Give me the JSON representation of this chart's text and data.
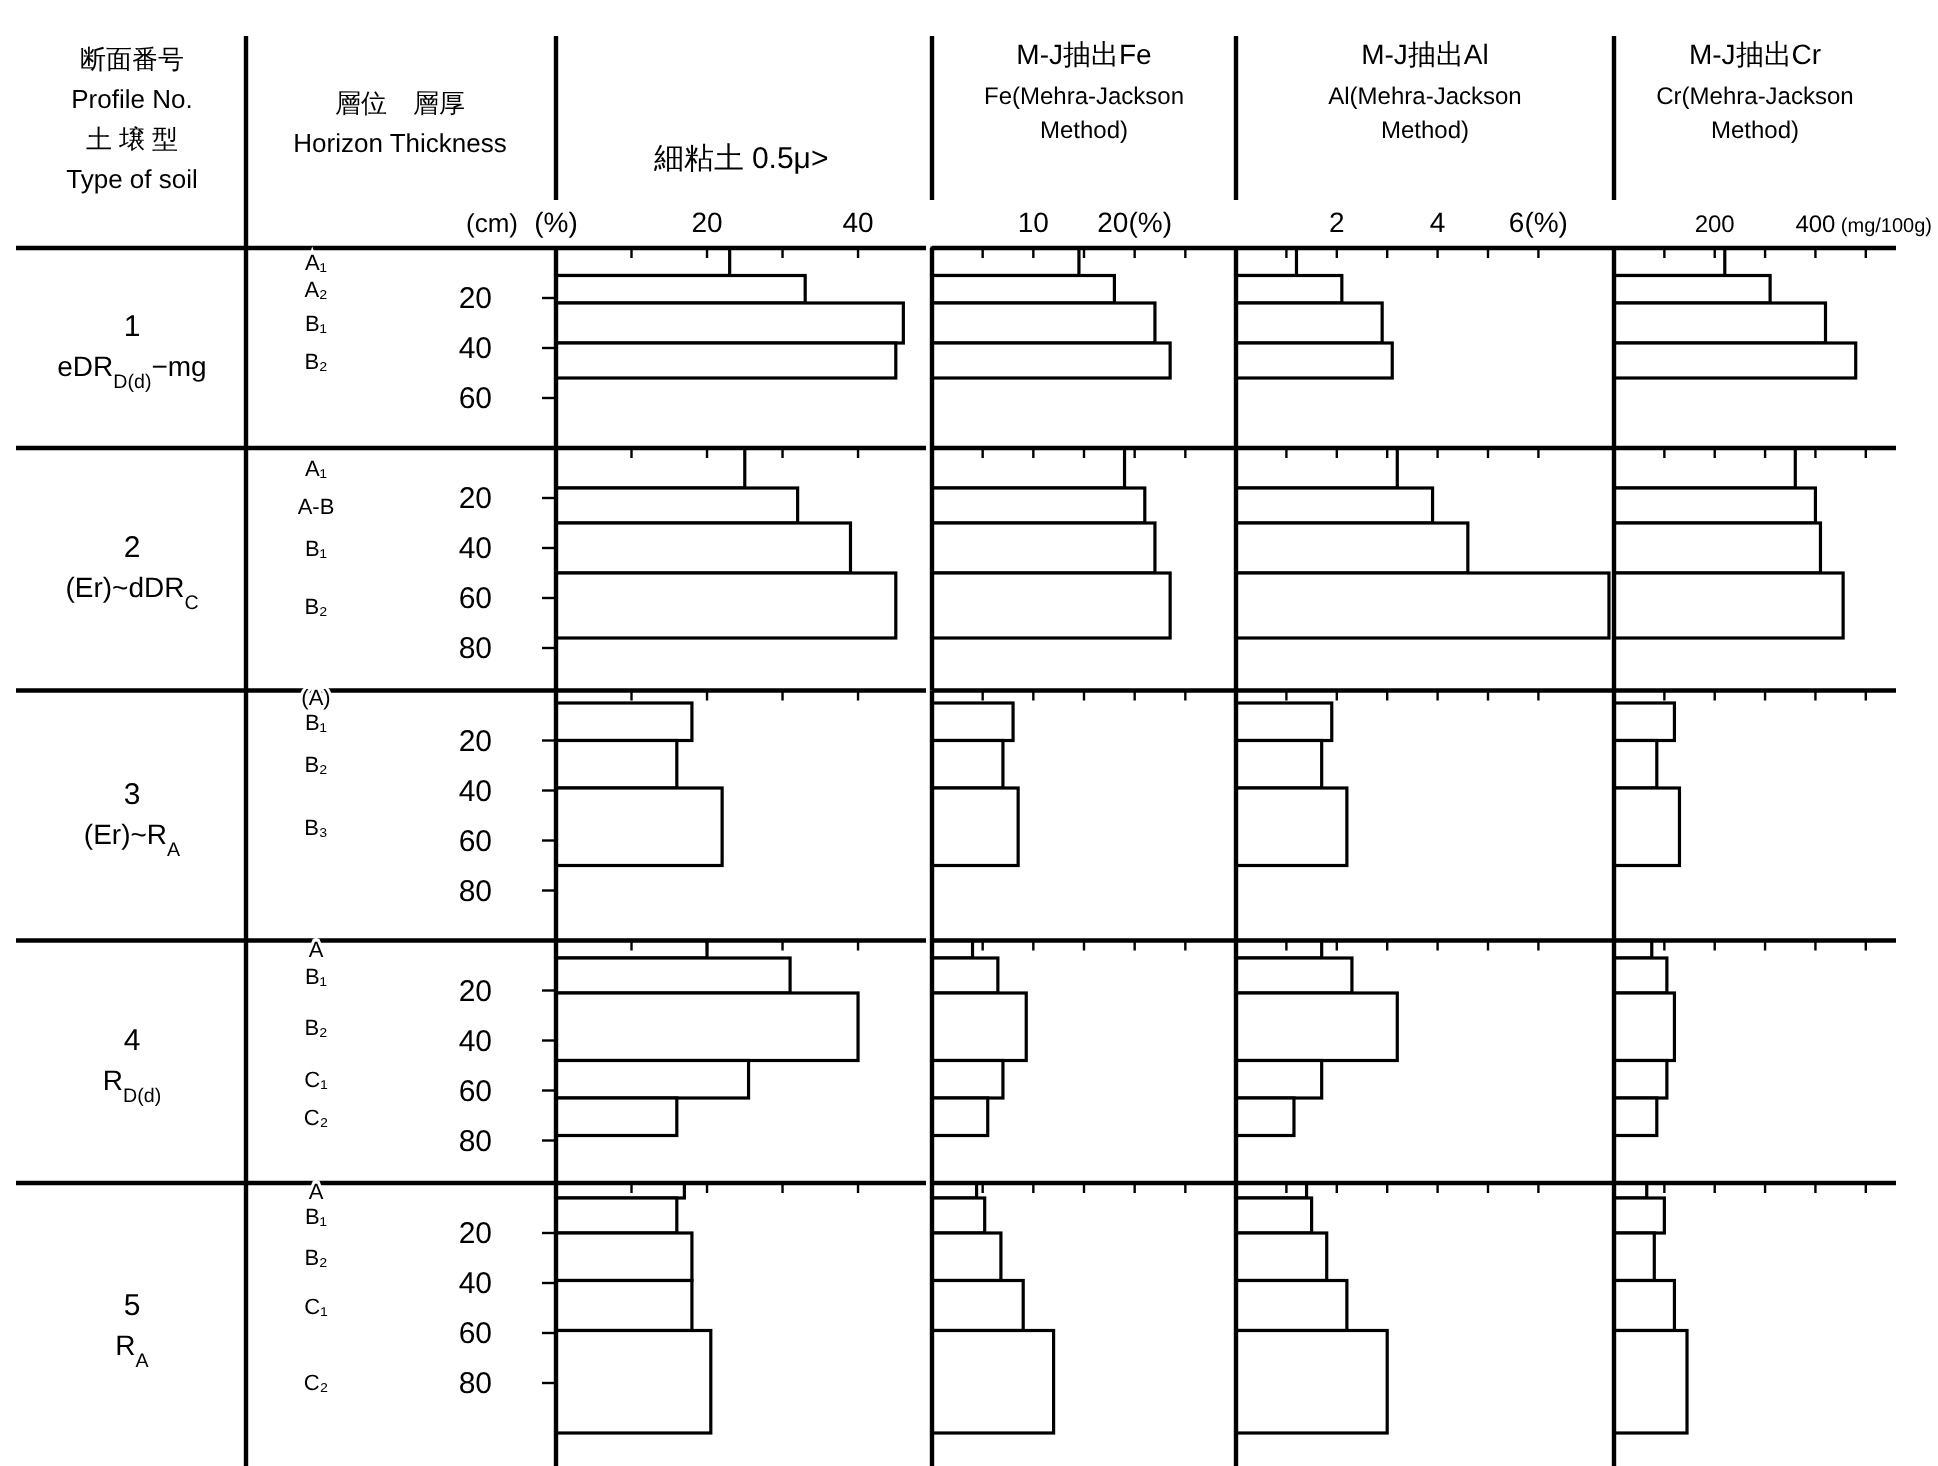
{
  "chart_data": [
    {
      "type": "histogram",
      "orientation": "horizontal",
      "xlabel": "細粘土 0.5μ>",
      "ylabel": "(cm)",
      "annotations": [
        "断面番号",
        "Profile No.",
        "土 壌 型",
        "Type of soil",
        "層位　層厚",
        "Horizon Thickness",
        "1",
        "eDR$_{D(d)}$−mg",
        "A₁",
        "A₂",
        "B₁",
        "B₂"
      ],
      "bins": [
        0,
        11,
        22,
        38,
        52
      ],
      "values": [
        23,
        33,
        46,
        45
      ],
      "color": "#000000",
      "xlim": [
        0,
        49
      ],
      "xticks": [
        {
          "value": 0,
          "label": "(%)"
        },
        {
          "value": 10,
          "label": null
        },
        20,
        {
          "value": 30,
          "label": null
        },
        40
      ],
      "ylim": [
        80,
        0
      ],
      "yticks": [
        20,
        40,
        60
      ]
    },
    {
      "type": "histogram",
      "orientation": "horizontal",
      "title": "M-J抽出Fe",
      "subtitle": "Fe(Mehra-Jackson Method)",
      "bins": [
        0,
        11,
        22,
        38,
        52
      ],
      "values": [
        14.5,
        18,
        22,
        23.5
      ],
      "color": "#000000",
      "xlim": [
        0,
        30
      ],
      "xticks": [
        {
          "value": 5,
          "label": null
        },
        10,
        {
          "value": 15,
          "label": null
        },
        {
          "value": 20,
          "label": "20(%)"
        },
        {
          "value": 25,
          "label": null
        }
      ],
      "ylim": [
        80,
        0
      ],
      "tick_labels": "x"
    },
    {
      "type": "histogram",
      "orientation": "horizontal",
      "title": "M-J抽出Al",
      "subtitle": "Al(Mehra-Jackson Method)",
      "bins": [
        0,
        11,
        22,
        38,
        52
      ],
      "values": [
        1.2,
        2.1,
        2.9,
        3.1
      ],
      "color": "#000000",
      "xlim": [
        0,
        7.5
      ],
      "xticks": [
        {
          "value": 1,
          "label": null
        },
        2,
        {
          "value": 3,
          "label": null
        },
        4,
        {
          "value": 5,
          "label": null
        },
        {
          "value": 6,
          "label": "6(%)"
        }
      ],
      "ylim": [
        80,
        0
      ],
      "tick_labels": "x"
    },
    {
      "type": "histogram",
      "orientation": "horizontal",
      "title": "M-J抽出Cr",
      "subtitle": "Cr(Mehra-Jackson Method)",
      "xlabel": "(mg/100g)",
      "bins": [
        0,
        11,
        22,
        38,
        52
      ],
      "values": [
        220,
        310,
        420,
        480
      ],
      "color": "#000000",
      "xlim": [
        0,
        560
      ],
      "xticks": [
        {
          "value": 100,
          "label": null
        },
        200,
        {
          "value": 300,
          "label": null
        },
        400,
        {
          "value": 500,
          "label": null
        }
      ],
      "ylim": [
        80,
        0
      ],
      "tick_labels": "x"
    },
    {
      "type": "histogram",
      "orientation": "horizontal",
      "annotations": [
        "2",
        "(Er)~dDR$_{C}$",
        "A₁",
        "A-B",
        "B₁",
        "B₂"
      ],
      "bins": [
        0,
        16,
        30,
        50,
        76
      ],
      "values": [
        25,
        32,
        39,
        45
      ],
      "color": "#000000",
      "xlim": [
        0,
        49
      ],
      "xticks": [
        10,
        20,
        30,
        40
      ],
      "ylim": [
        97,
        0
      ],
      "yticks": [
        20,
        40,
        60,
        80
      ],
      "tick_labels": "y"
    },
    {
      "type": "histogram",
      "orientation": "horizontal",
      "bins": [
        0,
        16,
        30,
        50,
        76
      ],
      "values": [
        19,
        21,
        22,
        23.5
      ],
      "color": "#000000",
      "xlim": [
        0,
        30
      ],
      "xticks": [
        5,
        10,
        15,
        20,
        25
      ],
      "ylim": [
        97,
        0
      ],
      "tick_labels": false
    },
    {
      "type": "histogram",
      "orientation": "horizontal",
      "bins": [
        0,
        16,
        30,
        50,
        76
      ],
      "values": [
        3.2,
        3.9,
        4.6,
        7.4
      ],
      "color": "#000000",
      "xlim": [
        0,
        7.5
      ],
      "xticks": [
        1,
        2,
        3,
        4,
        5,
        6
      ],
      "ylim": [
        97,
        0
      ],
      "tick_labels": false
    },
    {
      "type": "histogram",
      "orientation": "horizontal",
      "bins": [
        0,
        16,
        30,
        50,
        76
      ],
      "values": [
        360,
        400,
        410,
        455
      ],
      "color": "#000000",
      "xlim": [
        0,
        560
      ],
      "xticks": [
        100,
        200,
        300,
        400,
        500
      ],
      "ylim": [
        97,
        0
      ],
      "tick_labels": false
    },
    {
      "type": "histogram",
      "orientation": "horizontal",
      "annotations": [
        "3",
        "(Er)~R$_{A}$",
        "(A)",
        "B₁",
        "B₂",
        "B₃"
      ],
      "bins": [
        5,
        20,
        39,
        70
      ],
      "values": [
        18,
        16,
        22
      ],
      "color": "#000000",
      "xlim": [
        0,
        49
      ],
      "xticks": [
        10,
        20,
        30,
        40
      ],
      "ylim": [
        100,
        0
      ],
      "yticks": [
        20,
        40,
        60,
        80
      ],
      "tick_labels": "y"
    },
    {
      "type": "histogram",
      "orientation": "horizontal",
      "bins": [
        5,
        20,
        39,
        70
      ],
      "values": [
        8,
        7,
        8.5
      ],
      "color": "#000000",
      "xlim": [
        0,
        30
      ],
      "xticks": [
        5,
        10,
        15,
        20,
        25
      ],
      "ylim": [
        100,
        0
      ],
      "tick_labels": false
    },
    {
      "type": "histogram",
      "orientation": "horizontal",
      "bins": [
        5,
        20,
        39,
        70
      ],
      "values": [
        1.9,
        1.7,
        2.2
      ],
      "color": "#000000",
      "xlim": [
        0,
        7.5
      ],
      "xticks": [
        1,
        2,
        3,
        4,
        5,
        6
      ],
      "ylim": [
        100,
        0
      ],
      "tick_labels": false
    },
    {
      "type": "histogram",
      "orientation": "horizontal",
      "bins": [
        5,
        20,
        39,
        70
      ],
      "values": [
        120,
        85,
        130
      ],
      "color": "#000000",
      "xlim": [
        0,
        560
      ],
      "xticks": [
        100,
        200,
        300,
        400,
        500
      ],
      "ylim": [
        100,
        0
      ],
      "tick_labels": false
    },
    {
      "type": "histogram",
      "orientation": "horizontal",
      "annotations": [
        "4",
        "R$_{D(d)}$",
        "A",
        "B₁",
        "B₂",
        "C₁",
        "C₂"
      ],
      "bins": [
        0,
        7,
        21,
        48,
        63,
        78
      ],
      "values": [
        20,
        31,
        40,
        25.5,
        16
      ],
      "color": "#000000",
      "xlim": [
        0,
        49
      ],
      "xticks": [
        10,
        20,
        30,
        40
      ],
      "ylim": [
        97,
        0
      ],
      "yticks": [
        20,
        40,
        60,
        80
      ],
      "tick_labels": "y"
    },
    {
      "type": "histogram",
      "orientation": "horizontal",
      "bins": [
        0,
        7,
        21,
        48,
        63,
        78
      ],
      "values": [
        4,
        6.5,
        9.3,
        7,
        5.5
      ],
      "color": "#000000",
      "xlim": [
        0,
        30
      ],
      "xticks": [
        5,
        10,
        15,
        20,
        25
      ],
      "ylim": [
        97,
        0
      ],
      "tick_labels": false
    },
    {
      "type": "histogram",
      "orientation": "horizontal",
      "bins": [
        0,
        7,
        21,
        48,
        63,
        78
      ],
      "values": [
        1.7,
        2.3,
        3.2,
        1.7,
        1.15
      ],
      "color": "#000000",
      "xlim": [
        0,
        7.5
      ],
      "xticks": [
        1,
        2,
        3,
        4,
        5,
        6
      ],
      "ylim": [
        97,
        0
      ],
      "tick_labels": false
    },
    {
      "type": "histogram",
      "orientation": "horizontal",
      "bins": [
        0,
        7,
        21,
        48,
        63,
        78
      ],
      "values": [
        75,
        105,
        120,
        105,
        85
      ],
      "color": "#000000",
      "xlim": [
        0,
        560
      ],
      "xticks": [
        100,
        200,
        300,
        400,
        500
      ],
      "ylim": [
        97,
        0
      ],
      "tick_labels": false
    },
    {
      "type": "histogram",
      "orientation": "horizontal",
      "annotations": [
        "5",
        "R$_{A}$",
        "A",
        "B₁",
        "B₂",
        "C₁",
        "C₂"
      ],
      "bins": [
        0,
        6,
        20,
        39,
        59,
        100
      ],
      "values": [
        17,
        16,
        18,
        18,
        20.5
      ],
      "color": "#000000",
      "xlim": [
        0,
        49
      ],
      "xticks": [
        10,
        20,
        30,
        40
      ],
      "ylim": [
        115,
        0
      ],
      "yticks": [
        20,
        40,
        60,
        80
      ],
      "tick_labels": "y"
    },
    {
      "type": "histogram",
      "orientation": "horizontal",
      "bins": [
        0,
        6,
        20,
        39,
        59,
        100
      ],
      "values": [
        4.4,
        5.2,
        6.8,
        9,
        12
      ],
      "color": "#000000",
      "xlim": [
        0,
        30
      ],
      "xticks": [
        5,
        10,
        15,
        20,
        25
      ],
      "ylim": [
        115,
        0
      ],
      "tick_labels": false
    },
    {
      "type": "histogram",
      "orientation": "horizontal",
      "bins": [
        0,
        6,
        20,
        39,
        59,
        100
      ],
      "values": [
        1.4,
        1.5,
        1.8,
        2.2,
        3
      ],
      "color": "#000000",
      "xlim": [
        0,
        7.5
      ],
      "xticks": [
        1,
        2,
        3,
        4,
        5,
        6
      ],
      "ylim": [
        115,
        0
      ],
      "tick_labels": false
    },
    {
      "type": "histogram",
      "orientation": "horizontal",
      "bins": [
        0,
        6,
        20,
        39,
        59,
        100
      ],
      "values": [
        65,
        100,
        80,
        120,
        145
      ],
      "color": "#000000",
      "xlim": [
        0,
        560
      ],
      "xticks": [
        100,
        200,
        300,
        400,
        500
      ],
      "ylim": [
        115,
        0
      ],
      "tick_labels": false
    }
  ]
}
